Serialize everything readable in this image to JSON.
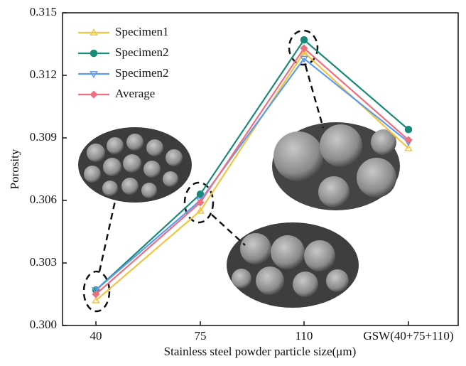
{
  "chart_data": {
    "type": "line",
    "x_label": "Stainless steel powder particle size(μm)",
    "y_label": "Porosity",
    "categories": [
      "40",
      "75",
      "110",
      "GSW(40+75+110)"
    ],
    "series": [
      {
        "name": "Specimen1",
        "color": "#f2c440",
        "marker": "triangle-up",
        "values": [
          0.3012,
          0.3055,
          0.3131,
          0.3085
        ]
      },
      {
        "name": "Specimen2",
        "color": "#1a8a78",
        "marker": "circle",
        "values": [
          0.3017,
          0.3063,
          0.3137,
          0.3094
        ]
      },
      {
        "name": "Specimen2",
        "color": "#5c9cf0",
        "marker": "triangle-down",
        "values": [
          0.3017,
          0.306,
          0.3128,
          0.3088
        ]
      },
      {
        "name": "Average",
        "color": "#ee6f80",
        "marker": "diamond",
        "values": [
          0.3015,
          0.3059,
          0.3133,
          0.3089
        ]
      }
    ],
    "ylim": [
      0.3,
      0.315
    ],
    "yticks": [
      {
        "value": 0.3,
        "label": "0.300"
      },
      0.303,
      0.306,
      0.309,
      0.312,
      0.315
    ],
    "legend": "top-left"
  }
}
